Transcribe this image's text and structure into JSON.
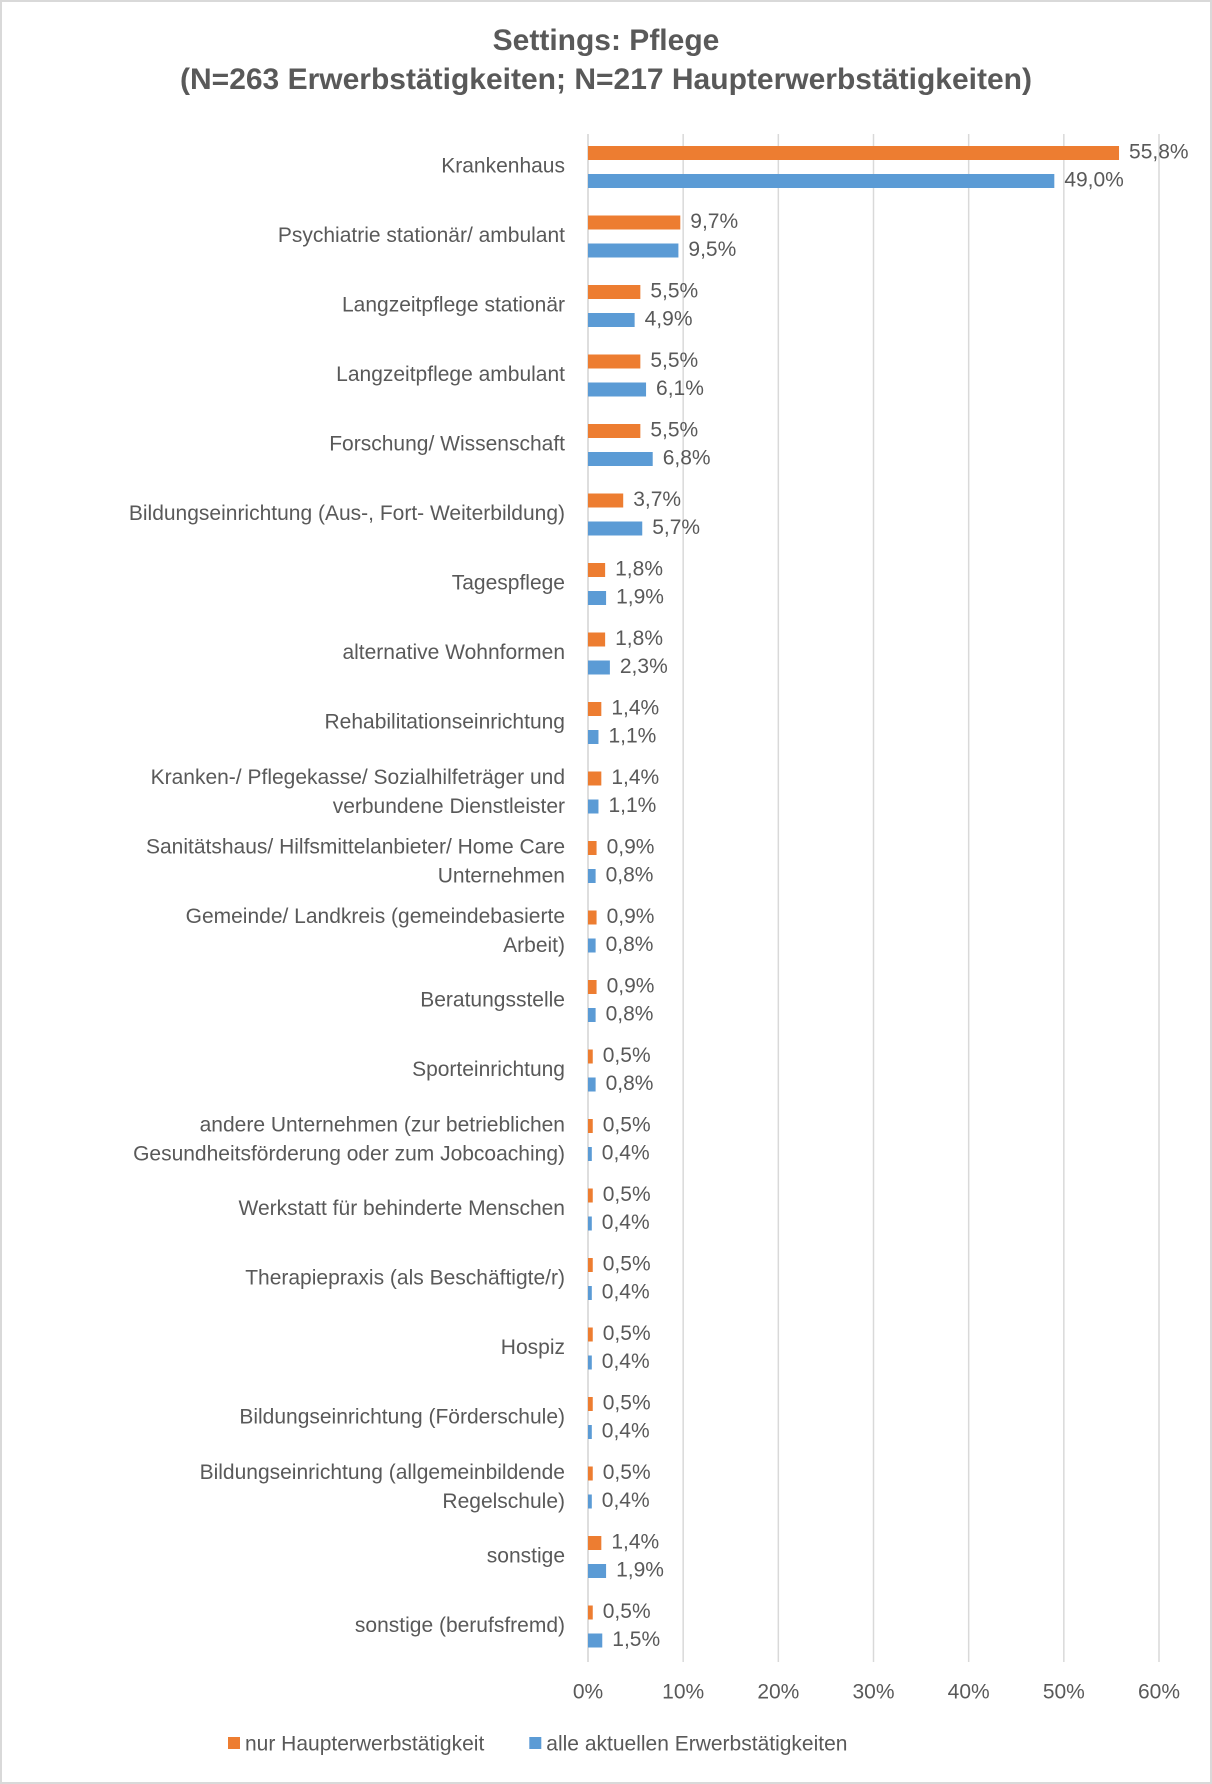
{
  "chart_data": {
    "type": "hbar",
    "title": "Settings: Pflege",
    "subtitle": "(N=263 Erwerbstätigkeiten; N=217 Haupterwerbstätigkeiten)",
    "categories": [
      "Krankenhaus",
      "Psychiatrie stationär/ ambulant",
      "Langzeitpflege stationär",
      "Langzeitpflege ambulant",
      "Forschung/ Wissenschaft",
      "Bildungseinrichtung (Aus-, Fort- Weiterbildung)",
      "Tagespflege",
      "alternative Wohnformen",
      "Rehabilitationseinrichtung",
      "Kranken-/ Pflegekasse/ Sozialhilfeträger und\nverbundene Dienstleister",
      "Sanitätshaus/ Hilfsmittelanbieter/ Home Care\nUnternehmen",
      "Gemeinde/ Landkreis (gemeindebasierte\nArbeit)",
      "Beratungsstelle",
      "Sporteinrichtung",
      "andere Unternehmen (zur betrieblichen\nGesundheitsförderung oder zum Jobcoaching)",
      "Werkstatt für behinderte Menschen",
      "Therapiepraxis (als Beschäftigte/r)",
      "Hospiz",
      "Bildungseinrichtung (Förderschule)",
      "Bildungseinrichtung (allgemeinbildende\nRegelschule)",
      "sonstige",
      "sonstige (berufsfremd)"
    ],
    "series": [
      {
        "name": "nur Haupterwerbstätigkeit",
        "color": "#ed7d31",
        "values": [
          55.8,
          9.7,
          5.5,
          5.5,
          5.5,
          3.7,
          1.8,
          1.8,
          1.4,
          1.4,
          0.9,
          0.9,
          0.9,
          0.5,
          0.5,
          0.5,
          0.5,
          0.5,
          0.5,
          0.5,
          1.4,
          0.5
        ],
        "value_labels": [
          "55,8%",
          "9,7%",
          "5,5%",
          "5,5%",
          "5,5%",
          "3,7%",
          "1,8%",
          "1,8%",
          "1,4%",
          "1,4%",
          "0,9%",
          "0,9%",
          "0,9%",
          "0,5%",
          "0,5%",
          "0,5%",
          "0,5%",
          "0,5%",
          "0,5%",
          "0,5%",
          "1,4%",
          "0,5%"
        ]
      },
      {
        "name": "alle aktuellen Erwerbstätigkeiten",
        "color": "#5b9bd5",
        "values": [
          49.0,
          9.5,
          4.9,
          6.1,
          6.8,
          5.7,
          1.9,
          2.3,
          1.1,
          1.1,
          0.8,
          0.8,
          0.8,
          0.8,
          0.4,
          0.4,
          0.4,
          0.4,
          0.4,
          0.4,
          1.9,
          1.5
        ],
        "value_labels": [
          "49,0%",
          "9,5%",
          "4,9%",
          "6,1%",
          "6,8%",
          "5,7%",
          "1,9%",
          "2,3%",
          "1,1%",
          "1,1%",
          "0,8%",
          "0,8%",
          "0,8%",
          "0,8%",
          "0,4%",
          "0,4%",
          "0,4%",
          "0,4%",
          "0,4%",
          "0,4%",
          "1,9%",
          "1,5%"
        ]
      }
    ],
    "xlim": [
      0,
      60
    ],
    "xticks": [
      {
        "value": 0,
        "label": "0%"
      },
      {
        "value": 10,
        "label": "10%"
      },
      {
        "value": 20,
        "label": "20%"
      },
      {
        "value": 30,
        "label": "30%"
      },
      {
        "value": 40,
        "label": "40%"
      },
      {
        "value": 50,
        "label": "50%"
      },
      {
        "value": 60,
        "label": "60%"
      }
    ],
    "grid": true,
    "legend": "bottom"
  }
}
